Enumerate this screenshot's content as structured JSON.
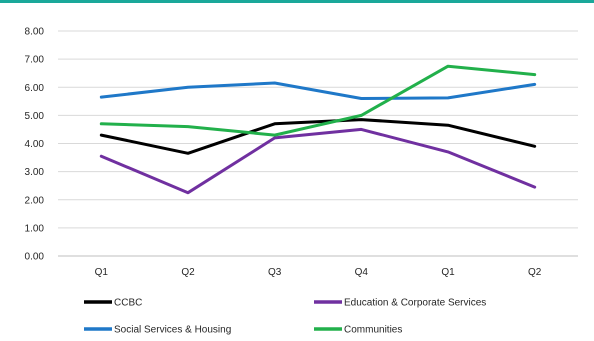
{
  "colors": {
    "top_rule": "#1aa89a",
    "grid": "#d9d9d9",
    "axis": "#bfbfbf",
    "text": "#262626"
  },
  "chart_data": {
    "type": "line",
    "categories": [
      "Q1",
      "Q2",
      "Q3",
      "Q4",
      "Q1",
      "Q2"
    ],
    "ylim": [
      0,
      8
    ],
    "y_ticks": [
      "0.00",
      "1.00",
      "2.00",
      "3.00",
      "4.00",
      "5.00",
      "6.00",
      "7.00",
      "8.00"
    ],
    "grid": true,
    "legend_position": "bottom",
    "series": [
      {
        "name": "CCBC",
        "color": "#000000",
        "values": [
          4.3,
          3.65,
          4.7,
          4.85,
          4.65,
          3.9
        ]
      },
      {
        "name": "Education & Corporate Services",
        "color": "#7030a0",
        "values": [
          3.55,
          2.25,
          4.2,
          4.5,
          3.7,
          2.45
        ]
      },
      {
        "name": "Social Services & Housing",
        "color": "#1f78c8",
        "values": [
          5.65,
          6.0,
          6.15,
          5.6,
          5.62,
          6.1
        ]
      },
      {
        "name": "Communities",
        "color": "#22b04b",
        "values": [
          4.7,
          4.6,
          4.3,
          5.0,
          6.75,
          6.45
        ]
      }
    ]
  }
}
